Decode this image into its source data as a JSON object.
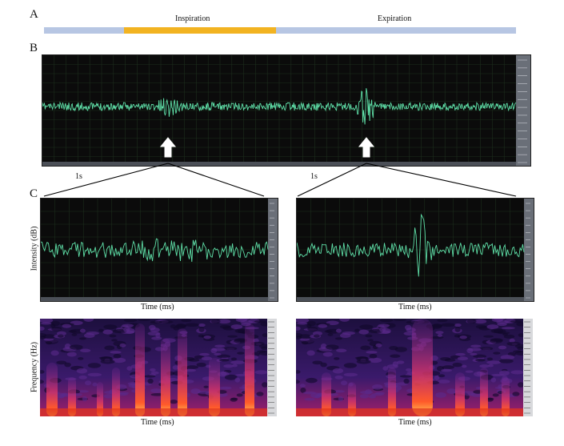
{
  "panel_a": {
    "letter": "A",
    "inspiration_label": "Inspiration",
    "expiration_label": "Expiration",
    "colors": {
      "rest": "#b7c6e3",
      "inspiration": "#f2b321"
    }
  },
  "panel_b": {
    "letter": "B",
    "arrow_icon": "up-arrow-icon",
    "zoom_left_label": "1s",
    "zoom_right_label": "1s"
  },
  "panel_c": {
    "letter": "C",
    "waveform_ylabel": "Intensity (dB)",
    "waveform_xlabel_left": "Time (ms)",
    "waveform_xlabel_right": "Time (ms)",
    "spectrogram_ylabel": "Frequency (Hz)",
    "spectrogram_xlabel_left": "Time (ms)",
    "spectrogram_xlabel_right": "Time (ms)"
  },
  "colors": {
    "trace": "#5fe0a8",
    "scope_bg": "#0b0b0b",
    "grid": "#1f3a1f"
  }
}
